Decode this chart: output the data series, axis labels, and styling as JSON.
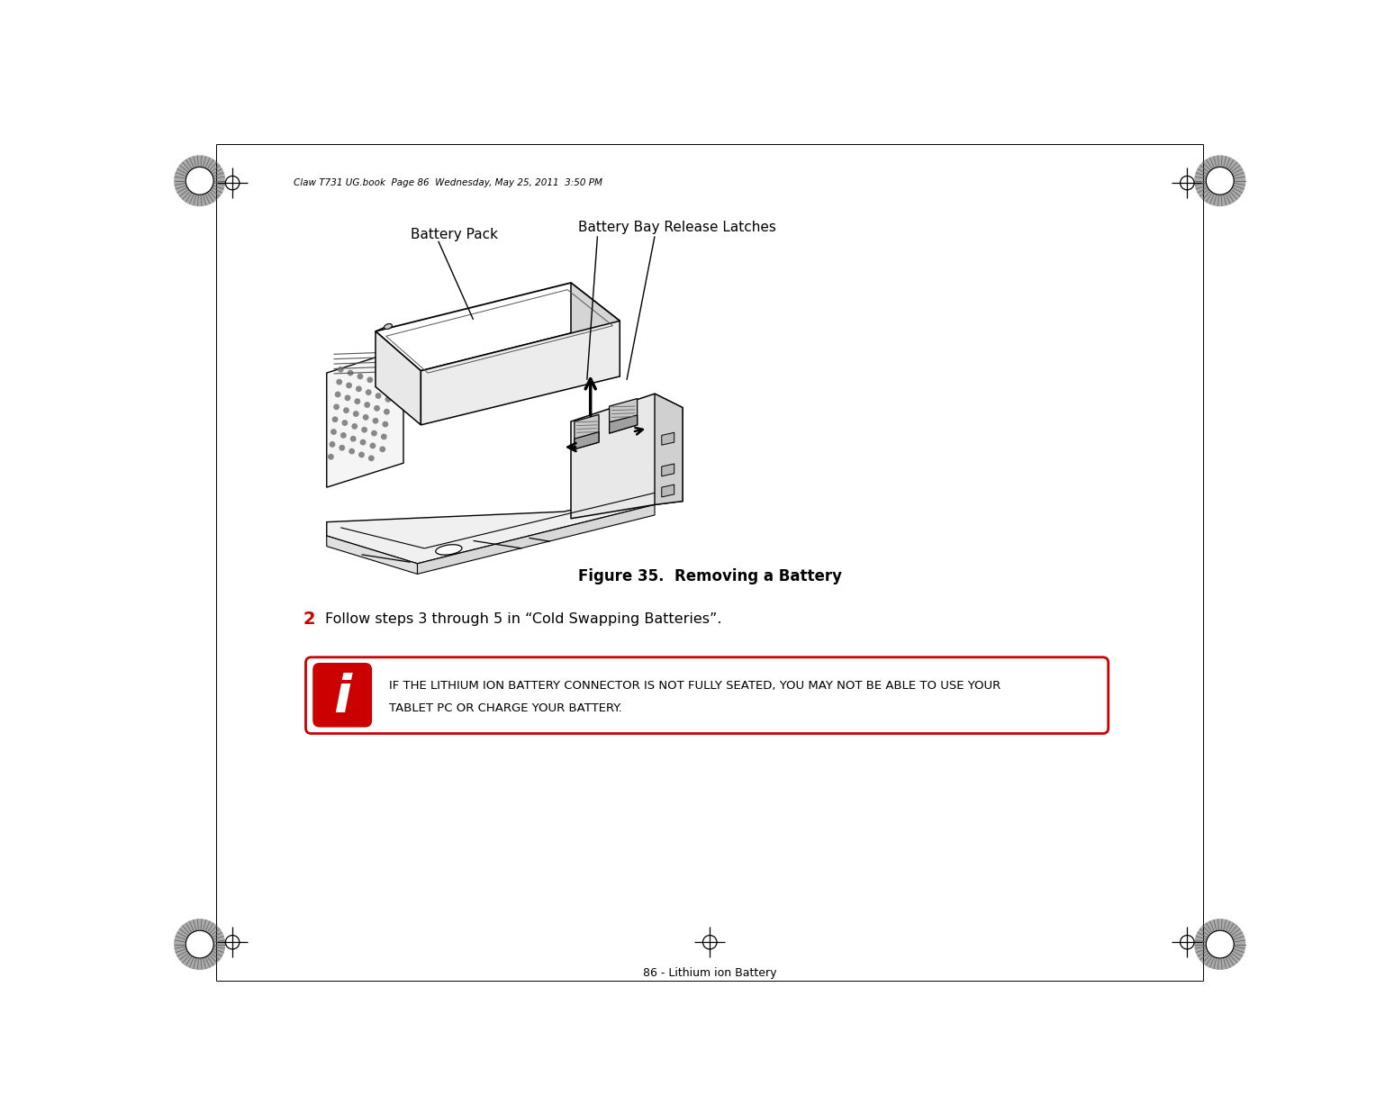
{
  "background_color": "#ffffff",
  "page_width": 15.38,
  "page_height": 12.37,
  "header_text": "Claw T731 UG.book  Page 86  Wednesday, May 25, 2011  3:50 PM",
  "footer_text": "86 - Lithium ion Battery",
  "figure_caption": "Figure 35.  Removing a Battery",
  "step_number": "2",
  "step_text": "Follow steps 3 through 5 in “Cold Swapping Batteries”.",
  "label_battery_pack": "Battery Pack",
  "label_battery_bay": "Battery Bay Release Latches",
  "info_line1": "I",
  "info_line2": "F THE ",
  "info_line3": "L",
  "info_line4": "ITHIUM ION BATTERY CONNECTOR IS NOT FULLY SEATED, YOU MAY NOT BE ABLE TO USE YOUR",
  "info_line5": "T",
  "info_line6": "ABLET ",
  "info_line7": "PC",
  "info_line8": " OR CHARGE YOUR BATTERY.",
  "text_color": "#000000",
  "info_box_border_color": "#cc0000",
  "info_icon_bg": "#cc0000"
}
